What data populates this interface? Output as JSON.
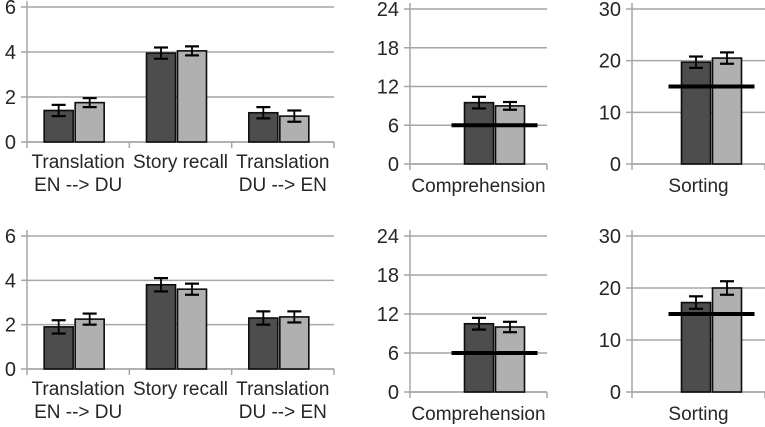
{
  "colors": {
    "dark_bar": "#4d4d4d",
    "light_bar": "#b0b0b0",
    "bar_border": "#0d0d0d",
    "gridline": "#a6a6a6",
    "axis": "#a6a6a6",
    "tick_label": "#262626",
    "category_label": "#262626",
    "error_bar": "#000000",
    "reference_line": "#000000",
    "background": "#ffffff"
  },
  "chart_data": [
    {
      "panel": "row-1-col-1",
      "type": "bar",
      "categories": [
        [
          "Translation",
          "EN --> DU"
        ],
        [
          "Story recall"
        ],
        [
          "Translation",
          "DU --> EN"
        ]
      ],
      "series": [
        {
          "name": "dark-gray-bars",
          "color": "#4d4d4d",
          "values": [
            1.4,
            3.95,
            1.3
          ],
          "errors": [
            0.25,
            0.25,
            0.25
          ]
        },
        {
          "name": "light-gray-bars",
          "color": "#b0b0b0",
          "values": [
            1.75,
            4.05,
            1.15
          ],
          "errors": [
            0.2,
            0.2,
            0.25
          ]
        }
      ],
      "ylim": [
        0,
        6
      ],
      "yticks": [
        0,
        2,
        4,
        6
      ],
      "reference_line": null,
      "grid": true,
      "legend": false
    },
    {
      "panel": "row-1-col-2",
      "type": "bar",
      "categories": [
        [
          "Comprehension"
        ]
      ],
      "series": [
        {
          "name": "dark-gray-bars",
          "color": "#4d4d4d",
          "values": [
            9.5
          ],
          "errors": [
            0.9
          ]
        },
        {
          "name": "light-gray-bars",
          "color": "#b0b0b0",
          "values": [
            9.0
          ],
          "errors": [
            0.6
          ]
        }
      ],
      "ylim": [
        0,
        24
      ],
      "yticks": [
        0,
        6,
        12,
        18,
        24
      ],
      "reference_line": 6,
      "grid": true,
      "legend": false
    },
    {
      "panel": "row-1-col-3",
      "type": "bar",
      "categories": [
        [
          "Sorting"
        ]
      ],
      "series": [
        {
          "name": "dark-gray-bars",
          "color": "#4d4d4d",
          "values": [
            19.7
          ],
          "errors": [
            1.1
          ]
        },
        {
          "name": "light-gray-bars",
          "color": "#b0b0b0",
          "values": [
            20.5
          ],
          "errors": [
            1.1
          ]
        }
      ],
      "ylim": [
        0,
        30
      ],
      "yticks": [
        0,
        10,
        20,
        30
      ],
      "reference_line": 15,
      "grid": true,
      "legend": false
    },
    {
      "panel": "row-2-col-1",
      "type": "bar",
      "categories": [
        [
          "Translation",
          "EN --> DU"
        ],
        [
          "Story recall"
        ],
        [
          "Translation",
          "DU --> EN"
        ]
      ],
      "series": [
        {
          "name": "dark-gray-bars",
          "color": "#4d4d4d",
          "values": [
            1.9,
            3.8,
            2.3
          ],
          "errors": [
            0.3,
            0.3,
            0.3
          ]
        },
        {
          "name": "light-gray-bars",
          "color": "#b0b0b0",
          "values": [
            2.25,
            3.6,
            2.35
          ],
          "errors": [
            0.25,
            0.25,
            0.25
          ]
        }
      ],
      "ylim": [
        0,
        6
      ],
      "yticks": [
        0,
        2,
        4,
        6
      ],
      "reference_line": null,
      "grid": true,
      "legend": false
    },
    {
      "panel": "row-2-col-2",
      "type": "bar",
      "categories": [
        [
          "Comprehension"
        ]
      ],
      "series": [
        {
          "name": "dark-gray-bars",
          "color": "#4d4d4d",
          "values": [
            10.5
          ],
          "errors": [
            0.9
          ]
        },
        {
          "name": "light-gray-bars",
          "color": "#b0b0b0",
          "values": [
            10.0
          ],
          "errors": [
            0.8
          ]
        }
      ],
      "ylim": [
        0,
        24
      ],
      "yticks": [
        0,
        6,
        12,
        18,
        24
      ],
      "reference_line": 6,
      "grid": true,
      "legend": false
    },
    {
      "panel": "row-2-col-3",
      "type": "bar",
      "categories": [
        [
          "Sorting"
        ]
      ],
      "series": [
        {
          "name": "dark-gray-bars",
          "color": "#4d4d4d",
          "values": [
            17.2
          ],
          "errors": [
            1.2
          ]
        },
        {
          "name": "light-gray-bars",
          "color": "#b0b0b0",
          "values": [
            20.0
          ],
          "errors": [
            1.3
          ]
        }
      ],
      "ylim": [
        0,
        30
      ],
      "yticks": [
        0,
        10,
        20,
        30
      ],
      "reference_line": 15,
      "grid": true,
      "legend": false
    }
  ]
}
